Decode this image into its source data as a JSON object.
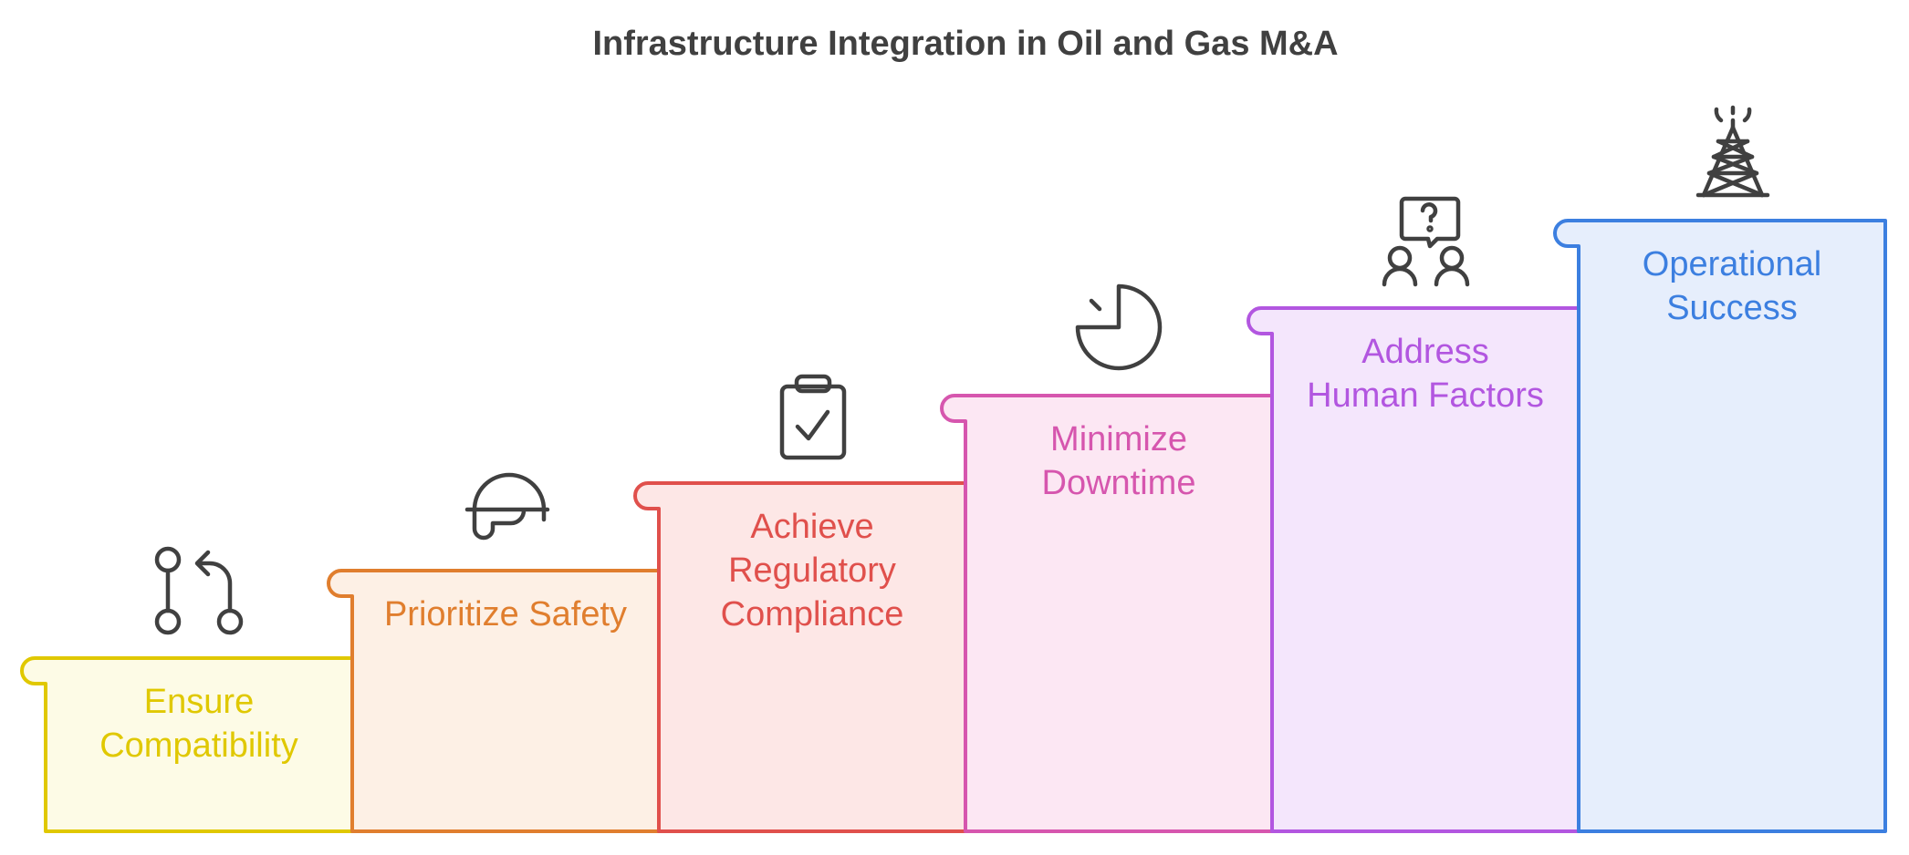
{
  "title": "Infrastructure Integration in Oil and Gas M&A",
  "steps": [
    {
      "lines": [
        "Ensure",
        "Compatibility"
      ],
      "color": "#E0C800",
      "fill": "#FDFBE6",
      "icon": "git-merge-icon"
    },
    {
      "lines": [
        "Prioritize Safety"
      ],
      "color": "#E07E2E",
      "fill": "#FDF0E5",
      "icon": "hard-hat-icon"
    },
    {
      "lines": [
        "Achieve",
        "Regulatory",
        "Compliance"
      ],
      "color": "#E0504C",
      "fill": "#FDE7E6",
      "icon": "clipboard-check-icon"
    },
    {
      "lines": [
        "Minimize",
        "Downtime"
      ],
      "color": "#D656AE",
      "fill": "#FCE7F3",
      "icon": "timer-icon"
    },
    {
      "lines": [
        "Address",
        "Human Factors"
      ],
      "color": "#B256E0",
      "fill": "#F4E6FC",
      "icon": "people-question-icon"
    },
    {
      "lines": [
        "Operational",
        "Success"
      ],
      "color": "#3C7FE0",
      "fill": "#E6EEFC",
      "icon": "oil-derrick-icon"
    }
  ]
}
